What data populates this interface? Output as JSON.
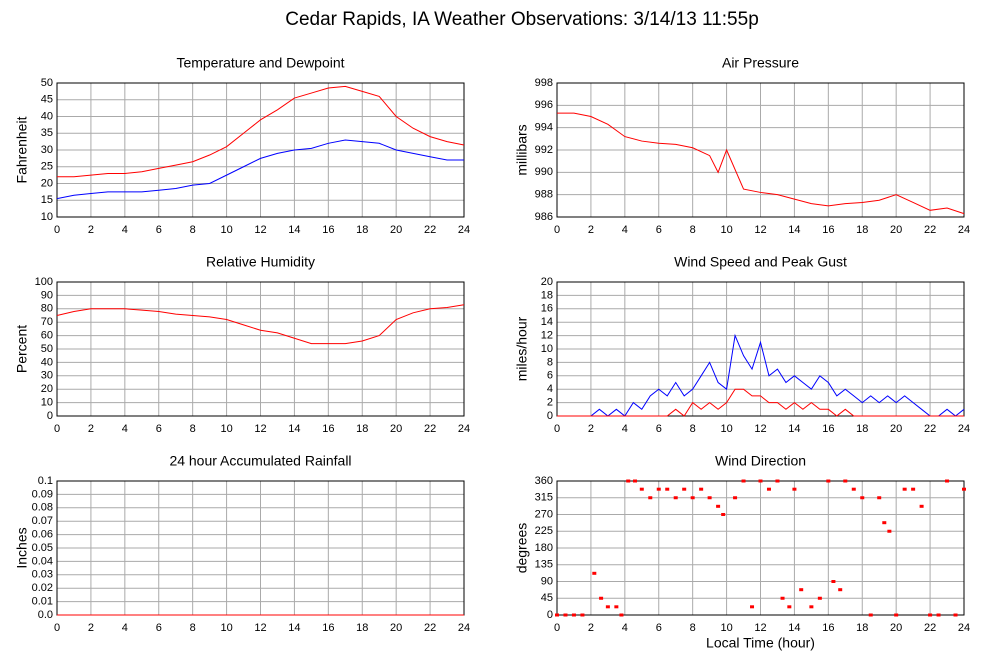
{
  "title": "Cedar Rapids, IA Weather Observations: 3/14/13 11:55p",
  "chart_data": [
    {
      "type": "line",
      "title": "Temperature and Dewpoint",
      "ylabel": "Fahrenheit",
      "x": [
        0,
        1,
        2,
        3,
        4,
        5,
        6,
        7,
        8,
        9,
        10,
        11,
        12,
        13,
        14,
        15,
        16,
        17,
        18,
        19,
        20,
        21,
        22,
        23,
        24
      ],
      "series": [
        {
          "color": "#ff0000",
          "values": [
            22,
            22,
            22.5,
            23,
            23,
            23.5,
            24.5,
            25.5,
            26.5,
            28.5,
            31,
            35,
            39,
            42,
            45.5,
            47,
            48.5,
            49,
            47.5,
            46,
            40,
            36.5,
            34,
            32.5,
            31.5
          ]
        },
        {
          "color": "#0000ff",
          "values": [
            15.5,
            16.5,
            17,
            17.5,
            17.5,
            17.5,
            18,
            18.5,
            19.5,
            20,
            22.5,
            25,
            27.5,
            29,
            30,
            30.5,
            32,
            33,
            32.5,
            32,
            30,
            29,
            28,
            27,
            27
          ]
        }
      ],
      "xlim": [
        0,
        24
      ],
      "xticks": [
        0,
        2,
        4,
        6,
        8,
        10,
        12,
        14,
        16,
        18,
        20,
        22,
        24
      ],
      "ylim": [
        10,
        50
      ],
      "yticks": [
        10,
        15,
        20,
        25,
        30,
        35,
        40,
        45,
        50
      ],
      "grid": true
    },
    {
      "type": "line",
      "title": "Air Pressure",
      "ylabel": "millibars",
      "x": [
        0,
        1,
        2,
        3,
        4,
        5,
        6,
        7,
        8,
        9,
        9.5,
        10,
        11,
        12,
        13,
        14,
        15,
        16,
        17,
        18,
        19,
        20,
        21,
        22,
        23,
        24
      ],
      "series": [
        {
          "color": "#ff0000",
          "values": [
            995.3,
            995.3,
            995,
            994.3,
            993.2,
            992.8,
            992.6,
            992.5,
            992.2,
            991.5,
            990,
            992,
            988.5,
            988.2,
            988,
            987.6,
            987.2,
            987,
            987.2,
            987.3,
            987.5,
            988,
            987.3,
            986.6,
            986.8,
            986.3
          ]
        }
      ],
      "xlim": [
        0,
        24
      ],
      "xticks": [
        0,
        2,
        4,
        6,
        8,
        10,
        12,
        14,
        16,
        18,
        20,
        22,
        24
      ],
      "ylim": [
        986,
        998
      ],
      "yticks": [
        986,
        988,
        990,
        992,
        994,
        996,
        998
      ],
      "grid": true
    },
    {
      "type": "line",
      "title": "Relative Humidity",
      "ylabel": "Percent",
      "x": [
        0,
        1,
        2,
        3,
        4,
        5,
        6,
        7,
        8,
        9,
        10,
        11,
        12,
        13,
        14,
        15,
        16,
        17,
        18,
        19,
        20,
        21,
        22,
        23,
        24
      ],
      "series": [
        {
          "color": "#ff0000",
          "values": [
            75,
            78,
            80,
            80,
            80,
            79,
            78,
            76,
            75,
            74,
            72,
            68,
            64,
            62,
            58,
            54,
            54,
            54,
            56,
            60,
            72,
            77,
            80,
            81,
            83
          ]
        }
      ],
      "xlim": [
        0,
        24
      ],
      "xticks": [
        0,
        2,
        4,
        6,
        8,
        10,
        12,
        14,
        16,
        18,
        20,
        22,
        24
      ],
      "ylim": [
        0,
        100
      ],
      "yticks": [
        0,
        10,
        20,
        30,
        40,
        50,
        60,
        70,
        80,
        90,
        100
      ],
      "grid": true
    },
    {
      "type": "line",
      "title": "Wind Speed and Peak Gust",
      "ylabel": "miles/hour",
      "x": [
        0,
        0.5,
        1,
        1.5,
        2,
        2.5,
        3,
        3.5,
        4,
        4.5,
        5,
        5.5,
        6,
        6.5,
        7,
        7.5,
        8,
        8.5,
        9,
        9.5,
        10,
        10.5,
        11,
        11.5,
        12,
        12.5,
        13,
        13.5,
        14,
        14.5,
        15,
        15.5,
        16,
        16.5,
        17,
        17.5,
        18,
        18.5,
        19,
        19.5,
        20,
        20.5,
        21,
        21.5,
        22,
        22.5,
        23,
        23.5,
        24
      ],
      "series": [
        {
          "color": "#0000ff",
          "values": [
            0,
            0,
            0,
            0,
            0,
            1,
            0,
            1,
            0,
            2,
            1,
            3,
            4,
            3,
            5,
            3,
            4,
            6,
            8,
            5,
            4,
            12,
            9,
            7,
            11,
            6,
            7,
            5,
            6,
            5,
            4,
            6,
            5,
            3,
            4,
            3,
            2,
            3,
            2,
            3,
            2,
            3,
            2,
            1,
            0,
            0,
            1,
            0,
            1
          ]
        },
        {
          "color": "#ff0000",
          "values": [
            0,
            0,
            0,
            0,
            0,
            0,
            0,
            0,
            0,
            0,
            0,
            0,
            0,
            0,
            1,
            0,
            2,
            1,
            2,
            1,
            2,
            4,
            4,
            3,
            3,
            2,
            2,
            1,
            2,
            1,
            2,
            1,
            1,
            0,
            1,
            0,
            0,
            0,
            0,
            0,
            0,
            0,
            0,
            0,
            0,
            0,
            0,
            0,
            0
          ]
        }
      ],
      "xlim": [
        0,
        24
      ],
      "xticks": [
        0,
        2,
        4,
        6,
        8,
        10,
        12,
        14,
        16,
        18,
        20,
        22,
        24
      ],
      "ylim": [
        0,
        20
      ],
      "yticks": [
        0,
        2,
        4,
        6,
        8,
        10,
        12,
        14,
        16,
        18,
        20
      ],
      "grid": true
    },
    {
      "type": "line",
      "title": "24 hour Accumulated Rainfall",
      "ylabel": "Inches",
      "x": [
        0,
        24
      ],
      "series": [
        {
          "color": "#ff0000",
          "values": [
            0,
            0
          ]
        }
      ],
      "xlim": [
        0,
        24
      ],
      "xticks": [
        0,
        2,
        4,
        6,
        8,
        10,
        12,
        14,
        16,
        18,
        20,
        22,
        24
      ],
      "ylim": [
        0,
        0.1
      ],
      "yticks": [
        {
          "value": 0,
          "label": "0.0"
        },
        0.01,
        0.02,
        0.03,
        0.04,
        0.05,
        0.06,
        0.07,
        0.08,
        0.09,
        0.1
      ],
      "grid": true
    },
    {
      "type": "scatter",
      "title": "Wind Direction",
      "ylabel": "degrees",
      "xlabel": "Local Time (hour)",
      "x": [
        0,
        0.5,
        1,
        1.5,
        2.2,
        2.6,
        3,
        3.5,
        3.8,
        4.2,
        4.6,
        5,
        5.5,
        6,
        6.5,
        7,
        7.5,
        8,
        8.5,
        9,
        9.5,
        9.8,
        10.5,
        11,
        11.5,
        12,
        12.5,
        13,
        13.3,
        13.7,
        14,
        14.4,
        15,
        15.5,
        16,
        16.3,
        16.7,
        17,
        17.5,
        18,
        18.5,
        19,
        19.3,
        19.6,
        20,
        20.5,
        21,
        21.5,
        22,
        22.5,
        23,
        23.5,
        24
      ],
      "series": [
        {
          "color": "#ff0000",
          "values": [
            0,
            0,
            0,
            0,
            112,
            45,
            22,
            22,
            0,
            360,
            360,
            338,
            315,
            338,
            338,
            315,
            338,
            315,
            338,
            315,
            292,
            270,
            315,
            360,
            22,
            360,
            338,
            360,
            45,
            22,
            338,
            68,
            22,
            45,
            360,
            90,
            68,
            360,
            338,
            315,
            0,
            315,
            248,
            225,
            0,
            338,
            338,
            292,
            0,
            0,
            360,
            0,
            338
          ]
        }
      ],
      "xlim": [
        0,
        24
      ],
      "xticks": [
        0,
        2,
        4,
        6,
        8,
        10,
        12,
        14,
        16,
        18,
        20,
        22,
        24
      ],
      "ylim": [
        0,
        360
      ],
      "yticks": [
        0,
        45,
        90,
        135,
        180,
        225,
        270,
        315,
        360
      ],
      "grid": true
    }
  ]
}
